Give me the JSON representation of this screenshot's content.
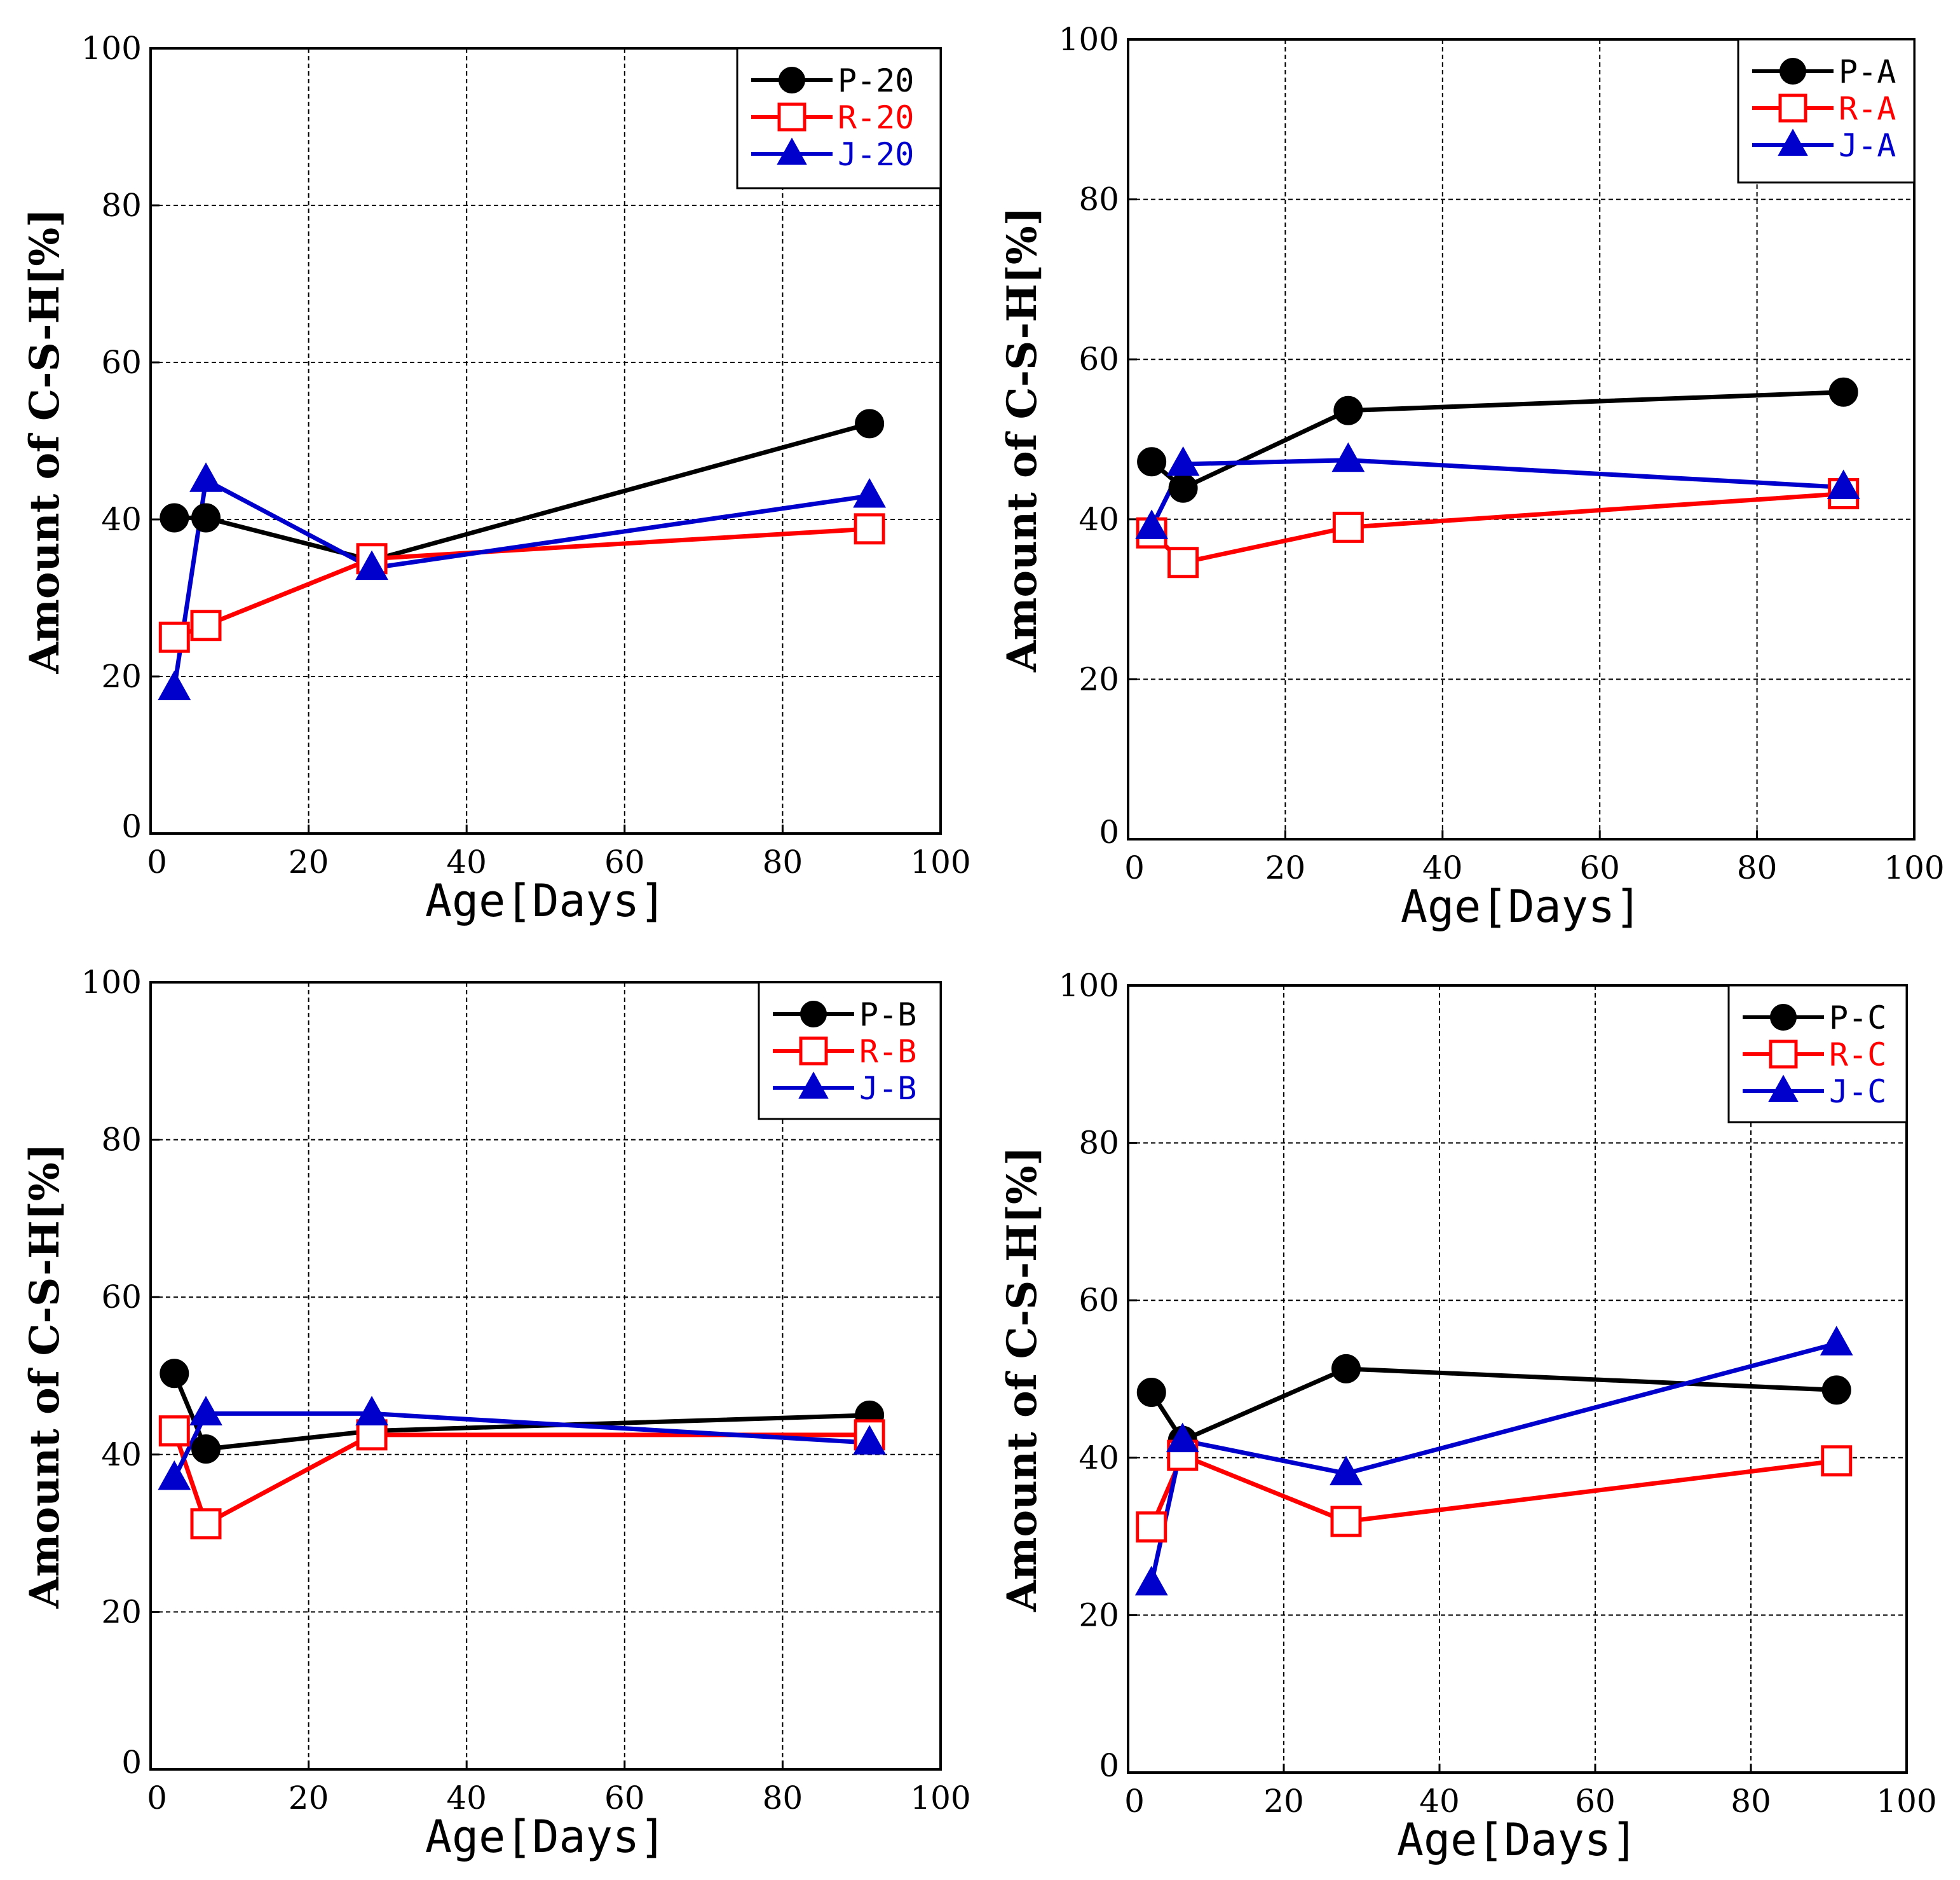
{
  "colors": {
    "P": "#000000",
    "R": "#ff0000",
    "J": "#0000cc"
  },
  "chart_data": [
    {
      "type": "line",
      "xlabel": "Age[Days]",
      "ylabel": "Amount of C-S-H[%]",
      "xlim": [
        0,
        100
      ],
      "ylim": [
        0,
        100
      ],
      "xticks": [
        "0",
        "20",
        "40",
        "60",
        "80",
        "100"
      ],
      "yticks": [
        "0",
        "20",
        "40",
        "60",
        "80",
        "100"
      ],
      "grid": true,
      "legend": "top-right",
      "series": [
        {
          "name": "P-20",
          "marker": "circle",
          "color": "#000000",
          "x": [
            3,
            7,
            28,
            91
          ],
          "y": [
            40.2,
            40.2,
            34.8,
            52.2
          ]
        },
        {
          "name": "R-20",
          "marker": "square",
          "color": "#ff0000",
          "x": [
            3,
            7,
            28,
            91
          ],
          "y": [
            25,
            26.5,
            35,
            38.8
          ]
        },
        {
          "name": "J-20",
          "marker": "triangle",
          "color": "#0000cc",
          "x": [
            3,
            7,
            28,
            91
          ],
          "y": [
            18.5,
            45,
            33.8,
            43
          ]
        }
      ]
    },
    {
      "type": "line",
      "xlabel": "Age[Days]",
      "ylabel": "Amount of C-S-H[%]",
      "xlim": [
        0,
        100
      ],
      "ylim": [
        0,
        100
      ],
      "xticks": [
        "0",
        "20",
        "40",
        "60",
        "80",
        "100"
      ],
      "yticks": [
        "0",
        "20",
        "40",
        "60",
        "80",
        "100"
      ],
      "grid": true,
      "legend": "top-right",
      "series": [
        {
          "name": "P-A",
          "marker": "circle",
          "color": "#000000",
          "x": [
            3,
            7,
            28,
            91
          ],
          "y": [
            47.2,
            43.9,
            53.6,
            55.9
          ]
        },
        {
          "name": "R-A",
          "marker": "square",
          "color": "#ff0000",
          "x": [
            3,
            7,
            28,
            91
          ],
          "y": [
            38.3,
            34.6,
            39,
            43.2
          ]
        },
        {
          "name": "J-A",
          "marker": "triangle",
          "color": "#0000cc",
          "x": [
            3,
            7,
            28,
            91
          ],
          "y": [
            39,
            46.9,
            47.4,
            44
          ]
        }
      ]
    },
    {
      "type": "line",
      "xlabel": "Age[Days]",
      "ylabel": "Amount of C-S-H[%]",
      "xlim": [
        0,
        100
      ],
      "ylim": [
        0,
        100
      ],
      "xticks": [
        "0",
        "20",
        "40",
        "60",
        "80",
        "100"
      ],
      "yticks": [
        "0",
        "20",
        "40",
        "60",
        "80",
        "100"
      ],
      "grid": true,
      "legend": "top-right",
      "series": [
        {
          "name": "P-B",
          "marker": "circle",
          "color": "#000000",
          "x": [
            3,
            7,
            28,
            91
          ],
          "y": [
            50.3,
            40.7,
            43,
            45
          ]
        },
        {
          "name": "R-B",
          "marker": "square",
          "color": "#ff0000",
          "x": [
            3,
            7,
            28,
            91
          ],
          "y": [
            43,
            31.2,
            42.5,
            42.5
          ]
        },
        {
          "name": "J-B",
          "marker": "triangle",
          "color": "#0000cc",
          "x": [
            3,
            7,
            28,
            91
          ],
          "y": [
            37,
            45.2,
            45.2,
            41.5
          ]
        }
      ]
    },
    {
      "type": "line",
      "xlabel": "Age[Days]",
      "ylabel": "Amount of C-S-H[%]",
      "xlim": [
        0,
        100
      ],
      "ylim": [
        0,
        100
      ],
      "xticks": [
        "0",
        "20",
        "40",
        "60",
        "80",
        "100"
      ],
      "yticks": [
        "0",
        "20",
        "40",
        "60",
        "80",
        "100"
      ],
      "grid": true,
      "legend": "top-right",
      "series": [
        {
          "name": "P-C",
          "marker": "circle",
          "color": "#000000",
          "x": [
            3,
            7,
            28,
            91
          ],
          "y": [
            48.3,
            42.2,
            51.3,
            48.6
          ]
        },
        {
          "name": "R-C",
          "marker": "square",
          "color": "#ff0000",
          "x": [
            3,
            7,
            28,
            91
          ],
          "y": [
            31.2,
            40.3,
            31.9,
            39.6
          ]
        },
        {
          "name": "J-C",
          "marker": "triangle",
          "color": "#0000cc",
          "x": [
            3,
            7,
            28,
            91
          ],
          "y": [
            24,
            42.2,
            38,
            54.5
          ]
        }
      ]
    }
  ]
}
